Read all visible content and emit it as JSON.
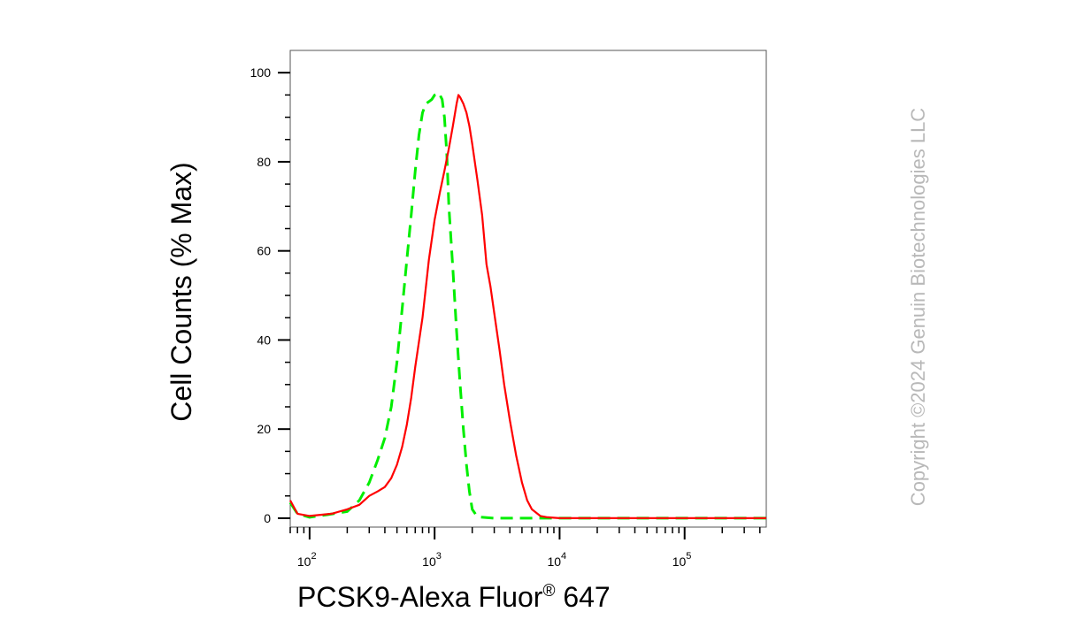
{
  "copyright": "Copyright ©2024 Genuin Biotechnologies LLC",
  "chart_data": {
    "type": "line",
    "title": "",
    "xlabel": "PCSK9-Alexa Fluor",
    "xlabel_superscript": "®",
    "xlabel_suffix": " 647",
    "ylabel": "Cell Counts (% Max)",
    "xscale": "log",
    "xlim": [
      70,
      450000
    ],
    "ylim": [
      -2,
      105
    ],
    "x_ticks": [
      {
        "base": "10",
        "exp": "2",
        "value": 100
      },
      {
        "base": "10",
        "exp": "3",
        "value": 1000
      },
      {
        "base": "10",
        "exp": "4",
        "value": 10000
      },
      {
        "base": "10",
        "exp": "5",
        "value": 100000
      }
    ],
    "y_ticks": [
      {
        "label": "0",
        "value": 0
      },
      {
        "label": "20",
        "value": 20
      },
      {
        "label": "40",
        "value": 40
      },
      {
        "label": "60",
        "value": 60
      },
      {
        "label": "80",
        "value": 80
      },
      {
        "label": "100",
        "value": 100
      }
    ],
    "grid": false,
    "legend": "none",
    "series": [
      {
        "color": "#00ee00",
        "style": "dashed",
        "points": [
          [
            70,
            3.5
          ],
          [
            80,
            1
          ],
          [
            100,
            0.2
          ],
          [
            140,
            0.8
          ],
          [
            200,
            1.5
          ],
          [
            250,
            4
          ],
          [
            300,
            8
          ],
          [
            350,
            13
          ],
          [
            400,
            18
          ],
          [
            450,
            25
          ],
          [
            500,
            35
          ],
          [
            550,
            47
          ],
          [
            600,
            58
          ],
          [
            650,
            68
          ],
          [
            700,
            78
          ],
          [
            750,
            86
          ],
          [
            800,
            91
          ],
          [
            850,
            93
          ],
          [
            900,
            93.5
          ],
          [
            950,
            94
          ],
          [
            1000,
            95
          ],
          [
            1080,
            95.5
          ],
          [
            1150,
            94
          ],
          [
            1200,
            90
          ],
          [
            1250,
            82
          ],
          [
            1300,
            70
          ],
          [
            1400,
            56
          ],
          [
            1500,
            42
          ],
          [
            1600,
            30
          ],
          [
            1700,
            20
          ],
          [
            1800,
            12
          ],
          [
            1900,
            6
          ],
          [
            2000,
            2
          ],
          [
            2200,
            0.3
          ],
          [
            3000,
            0
          ],
          [
            450000,
            0
          ]
        ]
      },
      {
        "color": "#ff0000",
        "style": "solid",
        "points": [
          [
            70,
            4
          ],
          [
            80,
            1
          ],
          [
            100,
            0.5
          ],
          [
            150,
            1
          ],
          [
            200,
            2
          ],
          [
            250,
            3
          ],
          [
            300,
            5
          ],
          [
            350,
            6
          ],
          [
            400,
            7
          ],
          [
            450,
            9
          ],
          [
            500,
            12
          ],
          [
            550,
            16
          ],
          [
            600,
            21
          ],
          [
            650,
            27
          ],
          [
            700,
            34
          ],
          [
            800,
            45
          ],
          [
            900,
            58
          ],
          [
            1000,
            67
          ],
          [
            1100,
            73
          ],
          [
            1200,
            78
          ],
          [
            1300,
            83
          ],
          [
            1400,
            88
          ],
          [
            1500,
            93
          ],
          [
            1550,
            95
          ],
          [
            1600,
            94.5
          ],
          [
            1700,
            93
          ],
          [
            1800,
            91
          ],
          [
            1900,
            88
          ],
          [
            2000,
            84
          ],
          [
            2200,
            76
          ],
          [
            2400,
            68
          ],
          [
            2600,
            57
          ],
          [
            2800,
            52
          ],
          [
            3000,
            46
          ],
          [
            3300,
            38
          ],
          [
            3600,
            30
          ],
          [
            4000,
            22
          ],
          [
            4500,
            14
          ],
          [
            5000,
            8
          ],
          [
            5500,
            4
          ],
          [
            6000,
            2
          ],
          [
            7000,
            0.5
          ],
          [
            8000,
            0.2
          ],
          [
            10000,
            0
          ],
          [
            450000,
            0
          ]
        ]
      }
    ]
  }
}
